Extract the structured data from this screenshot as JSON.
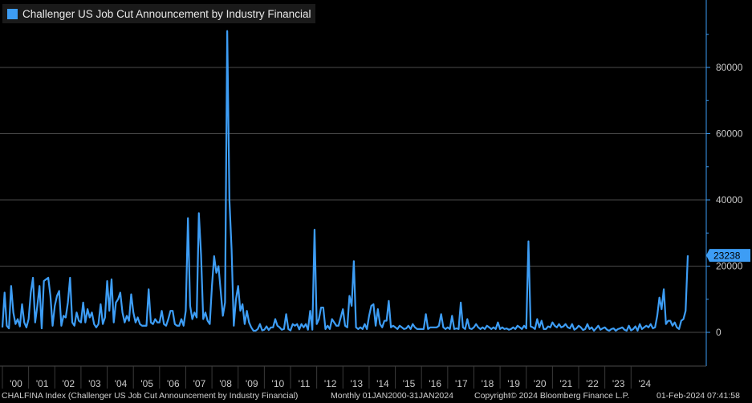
{
  "legend": {
    "label": "Challenger US Job Cut Announcement by Industry Financial"
  },
  "last_value_label": "23238",
  "colors": {
    "series": "#3d9df5",
    "grid": "#4a4a4a",
    "background": "#000000",
    "axis_text": "#c8c8c8"
  },
  "footer": {
    "ticker": "CHALFINA Index (Challenger US Job Cut Announcement by Industry Financial)",
    "range": "Monthly 01JAN2000-31JAN2024",
    "copyright": "Copyright© 2024 Bloomberg Finance L.P.",
    "timestamp": "01-Feb-2024 07:41:58"
  },
  "chart_data": {
    "type": "line",
    "title": "Challenger US Job Cut Announcement by Industry Financial",
    "x_start": "2000-01",
    "x_end": "2024-01",
    "frequency": "monthly",
    "ylim": [
      -8000,
      100000
    ],
    "yticks": [
      0,
      20000,
      40000,
      60000,
      80000
    ],
    "xtick_labels": [
      "'00",
      "'01",
      "'02",
      "'03",
      "'04",
      "'05",
      "'06",
      "'07",
      "'08",
      "'09",
      "'10",
      "'11",
      "'12",
      "'13",
      "'14",
      "'15",
      "'16",
      "'17",
      "'18",
      "'19",
      "'20",
      "'21",
      "'22",
      "'23",
      "'24"
    ],
    "grid": true,
    "y_axis_side": "right",
    "series": [
      {
        "name": "Challenger US Job Cut Announcement by Industry Financial",
        "values": [
          1500,
          12000,
          2000,
          1200,
          14000,
          6000,
          2500,
          4000,
          1800,
          8500,
          3000,
          1500,
          4000,
          12000,
          16500,
          3000,
          8000,
          14000,
          1200,
          15500,
          16000,
          16500,
          11000,
          2000,
          8000,
          11000,
          12500,
          2000,
          5000,
          4500,
          9000,
          16500,
          3000,
          2000,
          6000,
          3500,
          3000,
          9000,
          3000,
          7000,
          4500,
          6000,
          2500,
          1500,
          2500,
          8500,
          2500,
          4500,
          15500,
          6500,
          16000,
          3000,
          9000,
          10000,
          12000,
          6000,
          3000,
          5000,
          3500,
          11500,
          6000,
          3000,
          4500,
          2500,
          2000,
          2000,
          2000,
          13000,
          3000,
          2500,
          4000,
          3000,
          3000,
          6500,
          2500,
          2000,
          4000,
          6500,
          6500,
          2500,
          2000,
          2000,
          4000,
          2000,
          6500,
          34500,
          8000,
          4000,
          6000,
          4500,
          36000,
          23500,
          4000,
          6000,
          3500,
          2500,
          14000,
          23000,
          18000,
          20000,
          12500,
          5000,
          9000,
          91000,
          40000,
          25000,
          2000,
          10000,
          14000,
          6500,
          8500,
          2500,
          6500,
          3000,
          1500,
          500,
          500,
          1000,
          2500,
          600,
          800,
          1800,
          700,
          1500,
          1500,
          4000,
          2000,
          1500,
          800,
          1000,
          5500,
          1000,
          600,
          2500,
          2000,
          2500,
          900,
          2500,
          1500,
          2500,
          800,
          6500,
          800,
          31000,
          2500,
          4000,
          7500,
          7500,
          1000,
          2000,
          1000,
          4000,
          3000,
          2000,
          2000,
          4500,
          7000,
          2000,
          1500,
          11000,
          8000,
          21500,
          1500,
          1000,
          1500,
          1000,
          2500,
          1000,
          5000,
          8000,
          8500,
          2000,
          7000,
          2500,
          1500,
          3500,
          3500,
          9500,
          1500,
          2000,
          1500,
          1000,
          2000,
          1500,
          1000,
          1200,
          2000,
          1000,
          2500,
          1500,
          1000,
          1000,
          1000,
          1000,
          5500,
          1000,
          1500,
          1500,
          1500,
          1500,
          2000,
          5500,
          1500,
          1000,
          1500,
          1000,
          5000,
          1000,
          1200,
          1000,
          9000,
          1500,
          1000,
          4000,
          1200,
          1000,
          1500,
          2500,
          1500,
          1000,
          1500,
          1000,
          2000,
          1500,
          1000,
          1500,
          1000,
          3000,
          1000,
          1500,
          1000,
          1200,
          800,
          1000,
          1500,
          1000,
          2000,
          1500,
          1000,
          2000,
          1200,
          27500,
          1800,
          1500,
          1000,
          4000,
          1500,
          3500,
          1000,
          1000,
          1800,
          1500,
          3000,
          2000,
          1500,
          2500,
          1500,
          1800,
          2500,
          1500,
          1200,
          2500,
          800,
          1200,
          2000,
          1500,
          700,
          1000,
          2500,
          1000,
          1500,
          500,
          1200,
          2000,
          800,
          1200,
          1500,
          800,
          500,
          1000,
          1200,
          500,
          1000,
          1200,
          1500,
          800,
          500,
          2000,
          600,
          1000,
          1800,
          500,
          2500,
          1000,
          1500,
          2000,
          1500,
          2500,
          1200,
          1500,
          5000,
          10500,
          7000,
          13000,
          2500,
          3500,
          3500,
          2000,
          3000,
          1500,
          1000,
          3500,
          4000,
          6500,
          23238
        ]
      }
    ]
  }
}
